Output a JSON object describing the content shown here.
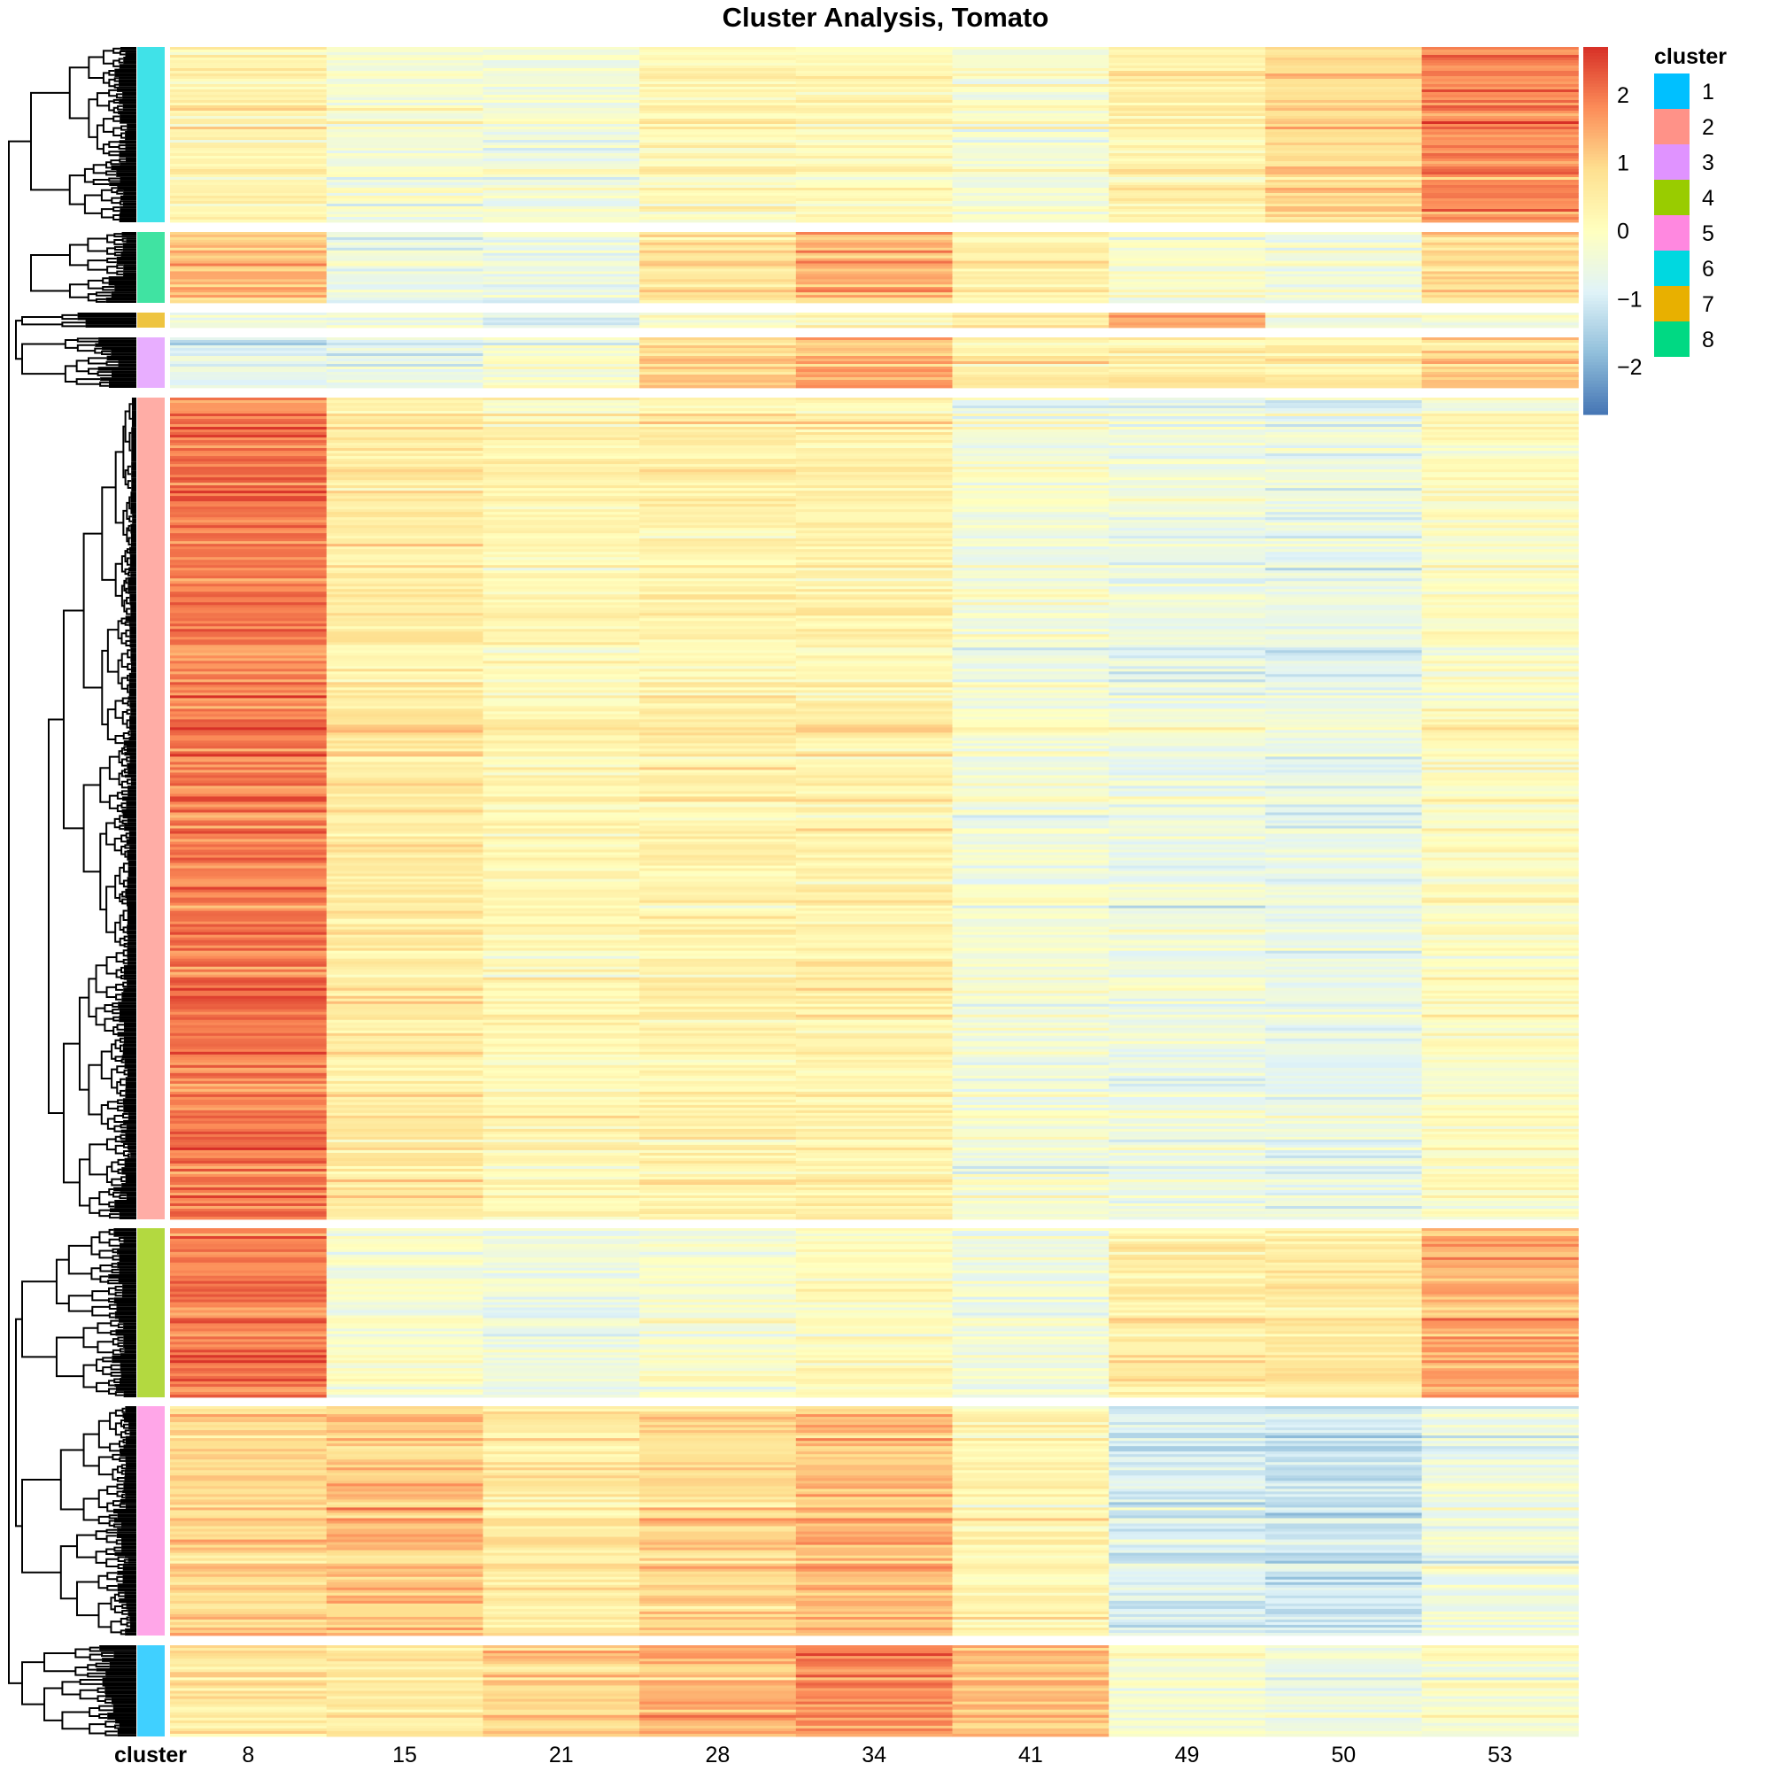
{
  "chart_data": {
    "type": "heatmap",
    "title": "Cluster Analysis, Tomato",
    "columns": [
      "8",
      "15",
      "21",
      "28",
      "34",
      "41",
      "49",
      "50",
      "53"
    ],
    "annotation_label": "cluster",
    "color_scale": {
      "range": [
        -2.7,
        2.7
      ],
      "ticks": [
        "2",
        "1",
        "0",
        "−1",
        "−2"
      ],
      "tick_values": [
        2,
        1,
        0,
        -1,
        -2
      ],
      "colors": [
        "#4575b4",
        "#91bfdb",
        "#e0f3f8",
        "#ffffbf",
        "#fee090",
        "#fc8d59",
        "#d73027"
      ]
    },
    "legend": {
      "title": "cluster",
      "placement": "right",
      "items": [
        {
          "label": "1",
          "color": "#00C0FF"
        },
        {
          "label": "2",
          "color": "#FF9288"
        },
        {
          "label": "3",
          "color": "#E093FF"
        },
        {
          "label": "4",
          "color": "#99CC00"
        },
        {
          "label": "5",
          "color": "#FF88E0"
        },
        {
          "label": "6",
          "color": "#00D8E0"
        },
        {
          "label": "7",
          "color": "#E8B000"
        },
        {
          "label": "8",
          "color": "#00D983"
        }
      ]
    },
    "row_blocks": [
      {
        "cluster": "6",
        "mean_values": [
          0.3,
          -0.3,
          -0.4,
          0.2,
          0.1,
          -0.3,
          0.4,
          0.9,
          1.8
        ]
      },
      {
        "cluster": "8",
        "mean_values": [
          1.2,
          -0.6,
          -0.6,
          0.6,
          1.3,
          0.4,
          -0.3,
          -0.4,
          0.8
        ]
      },
      {
        "cluster": "7",
        "mean_values": [
          -0.3,
          -0.4,
          -0.8,
          -0.2,
          0.2,
          0.6,
          1.5,
          -0.2,
          -0.3
        ]
      },
      {
        "cluster": "3",
        "mean_values": [
          -1.0,
          -0.8,
          -0.3,
          0.9,
          1.3,
          0.5,
          0.4,
          0.3,
          0.9
        ]
      },
      {
        "cluster": "2",
        "mean_values": [
          2.0,
          0.6,
          0.2,
          0.4,
          0.4,
          -0.3,
          -0.5,
          -0.6,
          0.0
        ]
      },
      {
        "cluster": "4",
        "mean_values": [
          2.0,
          -0.2,
          -0.5,
          -0.2,
          0.1,
          -0.4,
          0.5,
          0.6,
          1.5
        ]
      },
      {
        "cluster": "5",
        "mean_values": [
          1.0,
          1.2,
          0.6,
          1.0,
          1.3,
          0.3,
          -0.9,
          -1.1,
          -0.5
        ]
      },
      {
        "cluster": "1",
        "mean_values": [
          0.5,
          0.6,
          1.0,
          1.3,
          1.8,
          1.2,
          -0.3,
          -0.5,
          -0.2
        ]
      }
    ]
  }
}
